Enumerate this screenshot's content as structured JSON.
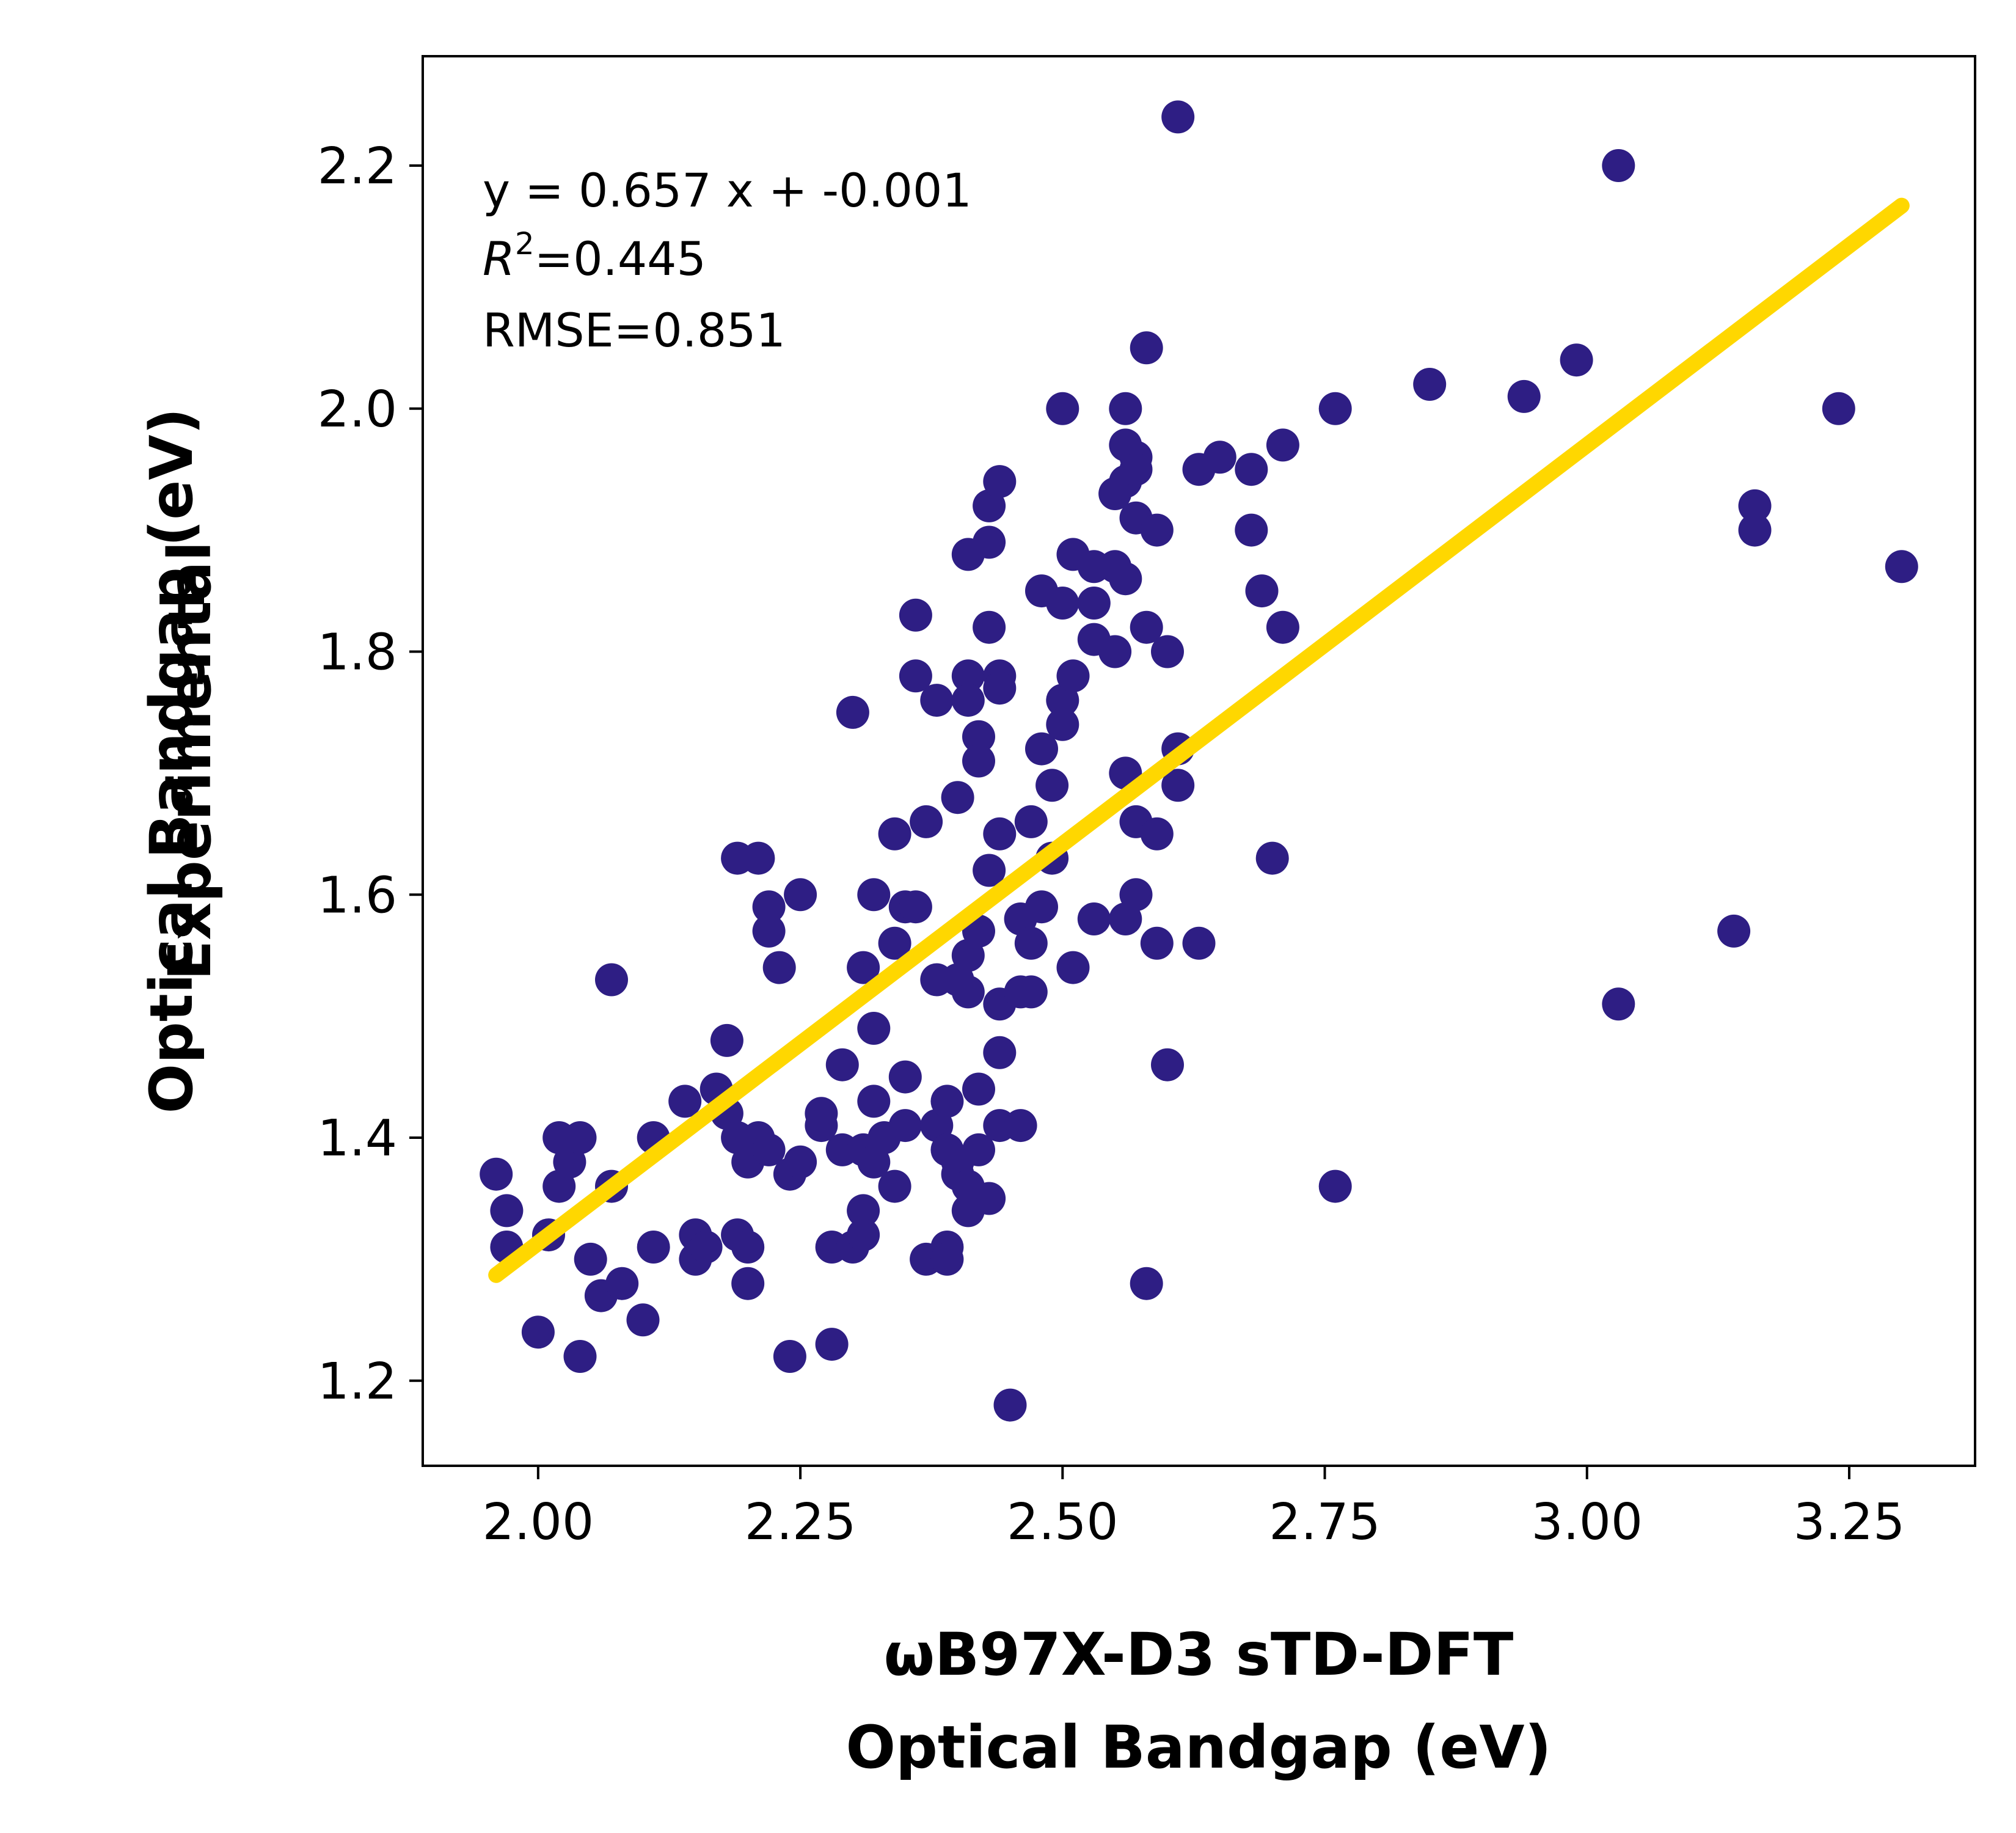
{
  "chart_data": {
    "type": "scatter",
    "xlabel": [
      "ωB97X-D3 sTD-DFT",
      "Optical Bandgap (eV)"
    ],
    "ylabel": [
      "Experimental",
      "Optical Bandgap (eV)"
    ],
    "xlim": [
      1.89,
      3.37
    ],
    "ylim": [
      1.13,
      2.29
    ],
    "xticks": [
      2.0,
      2.25,
      2.5,
      2.75,
      3.0,
      3.25
    ],
    "xtick_labels": [
      "2.00",
      "2.25",
      "2.50",
      "2.75",
      "3.00",
      "3.25"
    ],
    "yticks": [
      1.2,
      1.4,
      1.6,
      1.8,
      2.0,
      2.2
    ],
    "ytick_labels": [
      "1.2",
      "1.4",
      "1.6",
      "1.8",
      "2.0",
      "2.2"
    ],
    "grid": false,
    "annotations": {
      "equation": "y = 0.657 x + -0.001",
      "r2_prefix": "R",
      "r2_exponent": "2",
      "r2_value": "=0.445",
      "rmse": "RMSE=0.851"
    },
    "point_color": "#2e1e84",
    "fit_color": "#ffd700",
    "fit_line": {
      "x": [
        1.96,
        3.3
      ],
      "y": [
        1.287,
        2.167
      ]
    },
    "points": [
      [
        1.96,
        1.37
      ],
      [
        1.97,
        1.34
      ],
      [
        1.97,
        1.31
      ],
      [
        2.0,
        1.24
      ],
      [
        2.01,
        1.32
      ],
      [
        2.02,
        1.36
      ],
      [
        2.02,
        1.4
      ],
      [
        2.03,
        1.38
      ],
      [
        2.04,
        1.4
      ],
      [
        2.04,
        1.22
      ],
      [
        2.05,
        1.3
      ],
      [
        2.06,
        1.27
      ],
      [
        2.07,
        1.36
      ],
      [
        2.07,
        1.53
      ],
      [
        2.08,
        1.28
      ],
      [
        2.1,
        1.25
      ],
      [
        2.11,
        1.31
      ],
      [
        2.11,
        1.4
      ],
      [
        2.14,
        1.43
      ],
      [
        2.15,
        1.32
      ],
      [
        2.15,
        1.3
      ],
      [
        2.16,
        1.31
      ],
      [
        2.17,
        1.44
      ],
      [
        2.18,
        1.42
      ],
      [
        2.18,
        1.48
      ],
      [
        2.19,
        1.4
      ],
      [
        2.19,
        1.32
      ],
      [
        2.19,
        1.63
      ],
      [
        2.2,
        1.38
      ],
      [
        2.2,
        1.31
      ],
      [
        2.2,
        1.28
      ],
      [
        2.21,
        1.4
      ],
      [
        2.21,
        1.63
      ],
      [
        2.22,
        1.39
      ],
      [
        2.22,
        1.57
      ],
      [
        2.22,
        1.59
      ],
      [
        2.23,
        1.54
      ],
      [
        2.24,
        1.37
      ],
      [
        2.24,
        1.22
      ],
      [
        2.25,
        1.38
      ],
      [
        2.25,
        1.6
      ],
      [
        2.27,
        1.42
      ],
      [
        2.27,
        1.41
      ],
      [
        2.28,
        1.31
      ],
      [
        2.28,
        1.23
      ],
      [
        2.29,
        1.46
      ],
      [
        2.29,
        1.39
      ],
      [
        2.3,
        1.75
      ],
      [
        2.3,
        1.31
      ],
      [
        2.31,
        1.34
      ],
      [
        2.31,
        1.32
      ],
      [
        2.31,
        1.54
      ],
      [
        2.31,
        1.39
      ],
      [
        2.32,
        1.43
      ],
      [
        2.32,
        1.49
      ],
      [
        2.32,
        1.6
      ],
      [
        2.32,
        1.38
      ],
      [
        2.33,
        1.4
      ],
      [
        2.34,
        1.36
      ],
      [
        2.34,
        1.56
      ],
      [
        2.34,
        1.65
      ],
      [
        2.35,
        1.45
      ],
      [
        2.35,
        1.41
      ],
      [
        2.35,
        1.59
      ],
      [
        2.36,
        1.78
      ],
      [
        2.36,
        1.83
      ],
      [
        2.36,
        1.59
      ],
      [
        2.37,
        1.66
      ],
      [
        2.37,
        1.3
      ],
      [
        2.38,
        1.76
      ],
      [
        2.38,
        1.53
      ],
      [
        2.38,
        1.41
      ],
      [
        2.39,
        1.43
      ],
      [
        2.39,
        1.39
      ],
      [
        2.39,
        1.31
      ],
      [
        2.39,
        1.3
      ],
      [
        2.4,
        1.68
      ],
      [
        2.4,
        1.53
      ],
      [
        2.4,
        1.37
      ],
      [
        2.4,
        1.38
      ],
      [
        2.41,
        1.88
      ],
      [
        2.41,
        1.78
      ],
      [
        2.41,
        1.76
      ],
      [
        2.41,
        1.55
      ],
      [
        2.41,
        1.52
      ],
      [
        2.41,
        1.34
      ],
      [
        2.41,
        1.36
      ],
      [
        2.42,
        1.73
      ],
      [
        2.42,
        1.71
      ],
      [
        2.42,
        1.57
      ],
      [
        2.42,
        1.44
      ],
      [
        2.42,
        1.39
      ],
      [
        2.43,
        1.92
      ],
      [
        2.43,
        1.89
      ],
      [
        2.43,
        1.82
      ],
      [
        2.43,
        1.62
      ],
      [
        2.43,
        1.35
      ],
      [
        2.44,
        1.94
      ],
      [
        2.44,
        1.78
      ],
      [
        2.44,
        1.77
      ],
      [
        2.44,
        1.65
      ],
      [
        2.44,
        1.51
      ],
      [
        2.44,
        1.47
      ],
      [
        2.44,
        1.41
      ],
      [
        2.45,
        1.18
      ],
      [
        2.46,
        1.58
      ],
      [
        2.46,
        1.52
      ],
      [
        2.46,
        1.41
      ],
      [
        2.47,
        1.66
      ],
      [
        2.47,
        1.56
      ],
      [
        2.47,
        1.52
      ],
      [
        2.48,
        1.85
      ],
      [
        2.48,
        1.72
      ],
      [
        2.48,
        1.59
      ],
      [
        2.49,
        1.69
      ],
      [
        2.49,
        1.63
      ],
      [
        2.5,
        2.0
      ],
      [
        2.5,
        1.84
      ],
      [
        2.5,
        1.76
      ],
      [
        2.5,
        1.74
      ],
      [
        2.51,
        1.88
      ],
      [
        2.51,
        1.78
      ],
      [
        2.51,
        1.54
      ],
      [
        2.53,
        1.87
      ],
      [
        2.53,
        1.84
      ],
      [
        2.53,
        1.81
      ],
      [
        2.53,
        1.58
      ],
      [
        2.55,
        1.93
      ],
      [
        2.55,
        1.87
      ],
      [
        2.55,
        1.8
      ],
      [
        2.56,
        2.0
      ],
      [
        2.56,
        1.97
      ],
      [
        2.56,
        1.94
      ],
      [
        2.56,
        1.86
      ],
      [
        2.56,
        1.7
      ],
      [
        2.56,
        1.58
      ],
      [
        2.57,
        1.96
      ],
      [
        2.57,
        1.95
      ],
      [
        2.57,
        1.91
      ],
      [
        2.57,
        1.66
      ],
      [
        2.57,
        1.6
      ],
      [
        2.58,
        2.05
      ],
      [
        2.58,
        1.82
      ],
      [
        2.58,
        1.28
      ],
      [
        2.59,
        1.9
      ],
      [
        2.59,
        1.65
      ],
      [
        2.59,
        1.56
      ],
      [
        2.6,
        1.8
      ],
      [
        2.6,
        1.46
      ],
      [
        2.61,
        2.24
      ],
      [
        2.61,
        1.72
      ],
      [
        2.61,
        1.69
      ],
      [
        2.63,
        1.95
      ],
      [
        2.63,
        1.56
      ],
      [
        2.65,
        1.96
      ],
      [
        2.68,
        1.95
      ],
      [
        2.68,
        1.9
      ],
      [
        2.69,
        1.85
      ],
      [
        2.7,
        1.63
      ],
      [
        2.71,
        1.97
      ],
      [
        2.71,
        1.82
      ],
      [
        2.76,
        2.0
      ],
      [
        2.76,
        1.36
      ],
      [
        2.85,
        2.02
      ],
      [
        2.94,
        2.01
      ],
      [
        2.99,
        2.04
      ],
      [
        3.03,
        2.2
      ],
      [
        3.03,
        1.51
      ],
      [
        3.14,
        1.57
      ],
      [
        3.16,
        1.92
      ],
      [
        3.16,
        1.9
      ],
      [
        3.24,
        2.0
      ],
      [
        3.3,
        1.87
      ]
    ]
  }
}
